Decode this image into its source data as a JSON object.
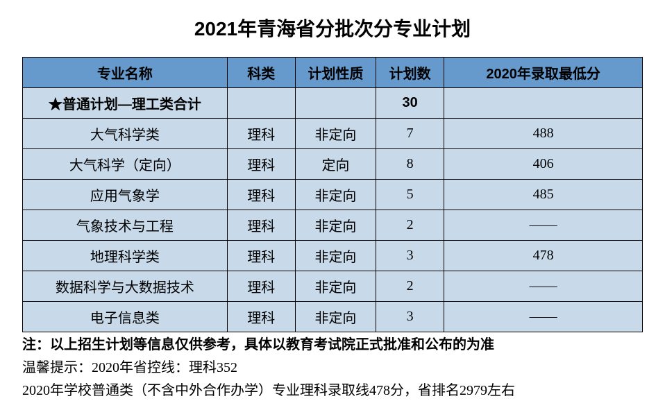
{
  "title": "2021年青海省分批次分专业计划",
  "table": {
    "header_bg": "#6699cc",
    "row_bg": "#c8daea",
    "columns": [
      "专业名称",
      "科类",
      "计划性质",
      "计划数",
      "2020年录取最低分"
    ],
    "summary": {
      "label": "★普通计划—理工类合计",
      "count": "30"
    },
    "rows": [
      {
        "major": "大气科学类",
        "cat": "理科",
        "type": "非定向",
        "count": "7",
        "score": "488"
      },
      {
        "major": "大气科学（定向）",
        "cat": "理科",
        "type": "定向",
        "count": "8",
        "score": "406"
      },
      {
        "major": "应用气象学",
        "cat": "理科",
        "type": "非定向",
        "count": "5",
        "score": "485"
      },
      {
        "major": "气象技术与工程",
        "cat": "理科",
        "type": "非定向",
        "count": "2",
        "score": "——"
      },
      {
        "major": "地理科学类",
        "cat": "理科",
        "type": "非定向",
        "count": "3",
        "score": "478"
      },
      {
        "major": "数据科学与大数据技术",
        "cat": "理科",
        "type": "非定向",
        "count": "2",
        "score": "——"
      },
      {
        "major": "电子信息类",
        "cat": "理科",
        "type": "非定向",
        "count": "3",
        "score": "——"
      }
    ]
  },
  "notes": {
    "line1": "注：以上招生计划等信息仅供参考，具体以教育考试院正式批准和公布的为准",
    "line2": "温馨提示：2020年省控线：理科352",
    "line3": "2020年学校普通类（不含中外合作办学）专业理科录取线478分，省排名2979左右"
  }
}
